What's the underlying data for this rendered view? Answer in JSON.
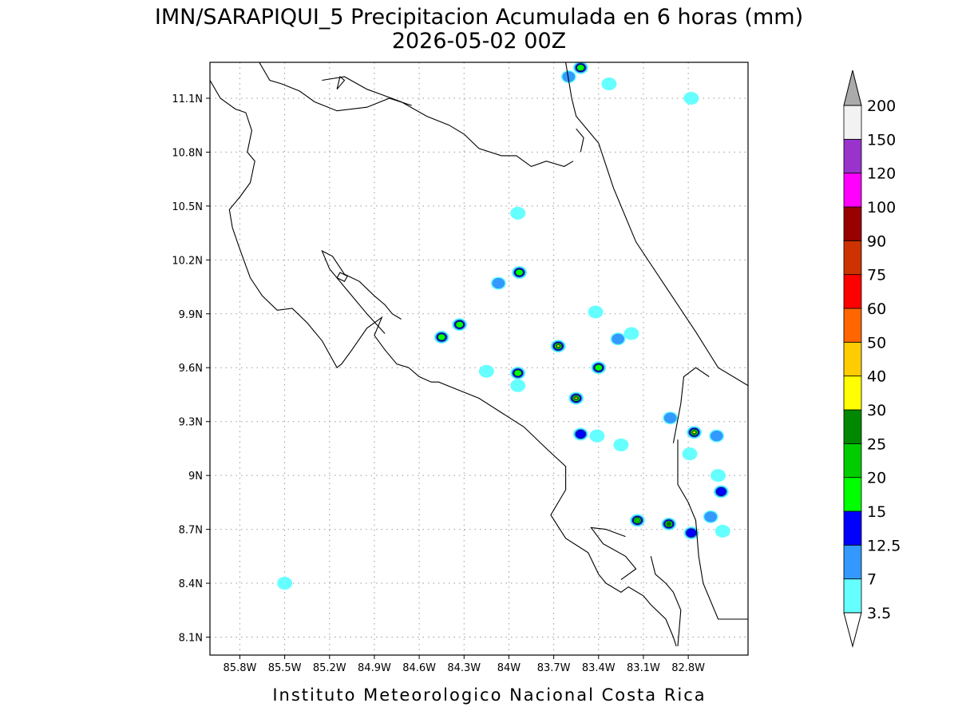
{
  "header": {
    "title": "IMN/SARAPIQUI_5 Precipitacion Acumulada en 6 horas (mm)",
    "subtitle": "2026-05-02 00Z"
  },
  "footer": {
    "credit": "Instituto Meteorologico Nacional Costa Rica"
  },
  "map": {
    "lon_range": [
      -86.0,
      -82.4
    ],
    "lat_range": [
      8.0,
      11.3
    ],
    "lon_ticks": [
      {
        "value": -85.8,
        "label": "85.8W"
      },
      {
        "value": -85.5,
        "label": "85.5W"
      },
      {
        "value": -85.2,
        "label": "85.2W"
      },
      {
        "value": -84.9,
        "label": "84.9W"
      },
      {
        "value": -84.6,
        "label": "84.6W"
      },
      {
        "value": -84.3,
        "label": "84.3W"
      },
      {
        "value": -84.0,
        "label": "84W"
      },
      {
        "value": -83.7,
        "label": "83.7W"
      },
      {
        "value": -83.4,
        "label": "83.4W"
      },
      {
        "value": -83.1,
        "label": "83.1W"
      },
      {
        "value": -82.8,
        "label": "82.8W"
      }
    ],
    "lat_ticks": [
      {
        "value": 11.1,
        "label": "11.1N"
      },
      {
        "value": 10.8,
        "label": "10.8N"
      },
      {
        "value": 10.5,
        "label": "10.5N"
      },
      {
        "value": 10.2,
        "label": "10.2N"
      },
      {
        "value": 9.9,
        "label": "9.9N"
      },
      {
        "value": 9.6,
        "label": "9.6N"
      },
      {
        "value": 9.3,
        "label": "9.3N"
      },
      {
        "value": 9.0,
        "label": "9N"
      },
      {
        "value": 8.7,
        "label": "8.7N"
      },
      {
        "value": 8.4,
        "label": "8.4N"
      },
      {
        "value": 8.1,
        "label": "8.1N"
      }
    ],
    "grid": true
  },
  "colorbar": {
    "levels": [
      "3.5",
      "7",
      "12.5",
      "15",
      "20",
      "25",
      "30",
      "40",
      "50",
      "60",
      "75",
      "90",
      "100",
      "120",
      "150",
      "200"
    ],
    "colors": [
      "#66ffff",
      "#3399ff",
      "#0000ff",
      "#00ff00",
      "#00cc00",
      "#008800",
      "#ffff00",
      "#ffcc00",
      "#ff6600",
      "#ff0000",
      "#cc3300",
      "#990000",
      "#ff00ff",
      "#9933cc",
      "#f2f2f2"
    ],
    "over_color": "#aaaaaa",
    "under_color": "#ffffff"
  },
  "rain_cells": [
    {
      "lon": -83.52,
      "lat": 11.27,
      "max": 15
    },
    {
      "lon": -83.6,
      "lat": 11.22,
      "max": 7
    },
    {
      "lon": -83.33,
      "lat": 11.18,
      "max": 3.5
    },
    {
      "lon": -82.78,
      "lat": 11.1,
      "max": 3.5
    },
    {
      "lon": -84.07,
      "lat": 10.07,
      "max": 7
    },
    {
      "lon": -83.94,
      "lat": 10.46,
      "max": 3.5
    },
    {
      "lon": -83.93,
      "lat": 10.13,
      "max": 15
    },
    {
      "lon": -84.45,
      "lat": 9.77,
      "max": 15
    },
    {
      "lon": -84.33,
      "lat": 9.84,
      "max": 15
    },
    {
      "lon": -83.67,
      "lat": 9.72,
      "max": 30
    },
    {
      "lon": -83.42,
      "lat": 9.91,
      "max": 3.5
    },
    {
      "lon": -83.27,
      "lat": 9.76,
      "max": 7
    },
    {
      "lon": -83.18,
      "lat": 9.79,
      "max": 3.5
    },
    {
      "lon": -84.15,
      "lat": 9.58,
      "max": 3.5
    },
    {
      "lon": -83.94,
      "lat": 9.57,
      "max": 15
    },
    {
      "lon": -83.4,
      "lat": 9.6,
      "max": 15
    },
    {
      "lon": -83.55,
      "lat": 9.43,
      "max": 40
    },
    {
      "lon": -83.52,
      "lat": 9.23,
      "max": 12.5
    },
    {
      "lon": -83.41,
      "lat": 9.22,
      "max": 3.5
    },
    {
      "lon": -83.25,
      "lat": 9.17,
      "max": 3.5
    },
    {
      "lon": -83.94,
      "lat": 9.5,
      "max": 3.5
    },
    {
      "lon": -82.92,
      "lat": 9.32,
      "max": 7
    },
    {
      "lon": -82.76,
      "lat": 9.24,
      "max": 30
    },
    {
      "lon": -82.61,
      "lat": 9.22,
      "max": 7
    },
    {
      "lon": -82.79,
      "lat": 9.12,
      "max": 3.5
    },
    {
      "lon": -82.6,
      "lat": 9.0,
      "max": 3.5
    },
    {
      "lon": -82.58,
      "lat": 8.91,
      "max": 12.5
    },
    {
      "lon": -82.65,
      "lat": 8.77,
      "max": 7
    },
    {
      "lon": -82.57,
      "lat": 8.69,
      "max": 3.5
    },
    {
      "lon": -83.14,
      "lat": 8.75,
      "max": 20
    },
    {
      "lon": -82.93,
      "lat": 8.73,
      "max": 25
    },
    {
      "lon": -82.78,
      "lat": 8.68,
      "max": 12.5
    },
    {
      "lon": -85.5,
      "lat": 8.4,
      "max": 3.5
    }
  ],
  "coastlines": [
    [
      [
        -86.0,
        11.2
      ],
      [
        -85.93,
        11.1
      ],
      [
        -85.83,
        11.04
      ],
      [
        -85.76,
        11.02
      ],
      [
        -85.72,
        10.92
      ],
      [
        -85.75,
        10.8
      ],
      [
        -85.7,
        10.75
      ],
      [
        -85.73,
        10.63
      ],
      [
        -85.8,
        10.55
      ],
      [
        -85.87,
        10.48
      ],
      [
        -85.85,
        10.38
      ],
      [
        -85.8,
        10.26
      ],
      [
        -85.73,
        10.1
      ],
      [
        -85.65,
        10.0
      ],
      [
        -85.55,
        9.92
      ],
      [
        -85.45,
        9.93
      ],
      [
        -85.35,
        9.85
      ],
      [
        -85.25,
        9.75
      ],
      [
        -85.15,
        9.6
      ],
      [
        -85.12,
        9.62
      ],
      [
        -85.05,
        9.7
      ],
      [
        -84.95,
        9.82
      ],
      [
        -84.85,
        9.88
      ],
      [
        -84.9,
        9.78
      ],
      [
        -84.83,
        9.7
      ],
      [
        -84.75,
        9.62
      ],
      [
        -84.67,
        9.6
      ],
      [
        -84.6,
        9.55
      ],
      [
        -84.52,
        9.52
      ],
      [
        -84.47,
        9.52
      ],
      [
        -84.35,
        9.48
      ],
      [
        -84.2,
        9.43
      ],
      [
        -84.05,
        9.35
      ],
      [
        -83.9,
        9.27
      ],
      [
        -83.75,
        9.15
      ],
      [
        -83.62,
        9.05
      ],
      [
        -83.62,
        8.92
      ],
      [
        -83.72,
        8.78
      ],
      [
        -83.62,
        8.65
      ],
      [
        -83.47,
        8.57
      ],
      [
        -83.4,
        8.45
      ],
      [
        -83.35,
        8.4
      ],
      [
        -83.25,
        8.35
      ],
      [
        -83.2,
        8.38
      ],
      [
        -83.1,
        8.33
      ],
      [
        -83.05,
        8.28
      ],
      [
        -82.95,
        8.2
      ],
      [
        -82.9,
        8.1
      ],
      [
        -82.88,
        8.05
      ]
    ],
    [
      [
        -84.83,
        9.79
      ],
      [
        -84.95,
        9.9
      ],
      [
        -85.08,
        10.03
      ],
      [
        -85.2,
        10.15
      ],
      [
        -85.25,
        10.25
      ],
      [
        -85.18,
        10.22
      ],
      [
        -85.1,
        10.12
      ],
      [
        -85.0,
        10.08
      ],
      [
        -84.9,
        10.0
      ],
      [
        -84.83,
        9.95
      ],
      [
        -84.78,
        9.9
      ],
      [
        -84.72,
        9.87
      ]
    ],
    [
      [
        -85.15,
        10.1
      ],
      [
        -85.1,
        10.08
      ],
      [
        -85.08,
        10.11
      ],
      [
        -85.13,
        10.13
      ],
      [
        -85.15,
        10.1
      ]
    ],
    [
      [
        -83.22,
        8.66
      ],
      [
        -83.35,
        8.7
      ],
      [
        -83.45,
        8.71
      ],
      [
        -83.37,
        8.62
      ],
      [
        -83.22,
        8.55
      ],
      [
        -83.15,
        8.48
      ],
      [
        -83.25,
        8.42
      ]
    ],
    [
      [
        -82.87,
        8.05
      ],
      [
        -82.85,
        8.25
      ],
      [
        -82.9,
        8.35
      ],
      [
        -82.95,
        8.4
      ],
      [
        -83.02,
        8.45
      ],
      [
        -83.05,
        8.55
      ]
    ],
    [
      [
        -83.62,
        11.3
      ],
      [
        -83.58,
        11.1
      ],
      [
        -83.55,
        11.0
      ],
      [
        -83.4,
        10.85
      ],
      [
        -83.3,
        10.6
      ],
      [
        -83.15,
        10.3
      ],
      [
        -82.95,
        10.05
      ],
      [
        -82.75,
        9.8
      ],
      [
        -82.6,
        9.6
      ],
      [
        -82.4,
        9.5
      ]
    ],
    [
      [
        -83.55,
        10.93
      ],
      [
        -83.5,
        10.88
      ],
      [
        -83.52,
        10.8
      ]
    ],
    [
      [
        -85.25,
        11.2
      ],
      [
        -85.1,
        11.22
      ],
      [
        -84.95,
        11.15
      ],
      [
        -84.85,
        11.12
      ],
      [
        -84.72,
        11.08
      ],
      [
        -84.55,
        11.0
      ],
      [
        -84.4,
        10.95
      ],
      [
        -84.3,
        10.9
      ],
      [
        -84.2,
        10.82
      ],
      [
        -84.05,
        10.78
      ],
      [
        -83.95,
        10.78
      ],
      [
        -83.85,
        10.72
      ],
      [
        -83.75,
        10.75
      ],
      [
        -83.63,
        10.72
      ],
      [
        -83.57,
        10.75
      ]
    ],
    [
      [
        -85.67,
        11.3
      ],
      [
        -85.6,
        11.2
      ],
      [
        -85.52,
        11.18
      ],
      [
        -85.4,
        11.14
      ],
      [
        -85.3,
        11.08
      ],
      [
        -85.15,
        11.03
      ],
      [
        -84.95,
        11.05
      ],
      [
        -84.8,
        11.1
      ],
      [
        -84.65,
        11.06
      ]
    ],
    [
      [
        -85.15,
        11.15
      ],
      [
        -85.1,
        11.2
      ],
      [
        -85.13,
        11.22
      ],
      [
        -85.15,
        11.15
      ]
    ],
    [
      [
        -82.87,
        9.2
      ],
      [
        -82.87,
        8.95
      ],
      [
        -82.8,
        8.85
      ],
      [
        -82.75,
        8.75
      ],
      [
        -82.73,
        8.55
      ],
      [
        -82.7,
        8.4
      ],
      [
        -82.6,
        8.2
      ],
      [
        -82.4,
        8.2
      ]
    ],
    [
      [
        -82.9,
        9.18
      ],
      [
        -82.85,
        9.4
      ],
      [
        -82.83,
        9.55
      ],
      [
        -82.75,
        9.6
      ],
      [
        -82.66,
        9.55
      ]
    ]
  ]
}
